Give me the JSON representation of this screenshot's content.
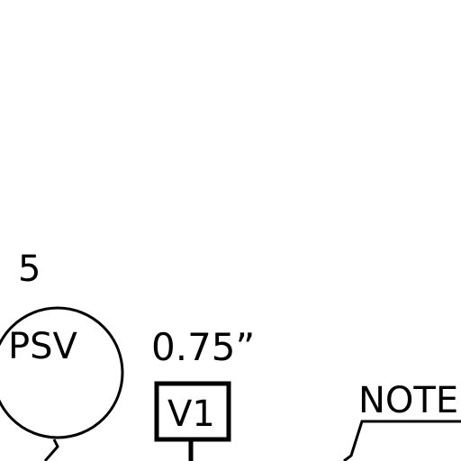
{
  "diagram": {
    "tag_number": "5",
    "instrument": {
      "label": "PSV"
    },
    "valve": {
      "label": "V1",
      "size": "0.75”"
    },
    "note": {
      "label": "NOTE"
    },
    "colors": {
      "line": "#000000",
      "background": "#ffffff"
    }
  }
}
